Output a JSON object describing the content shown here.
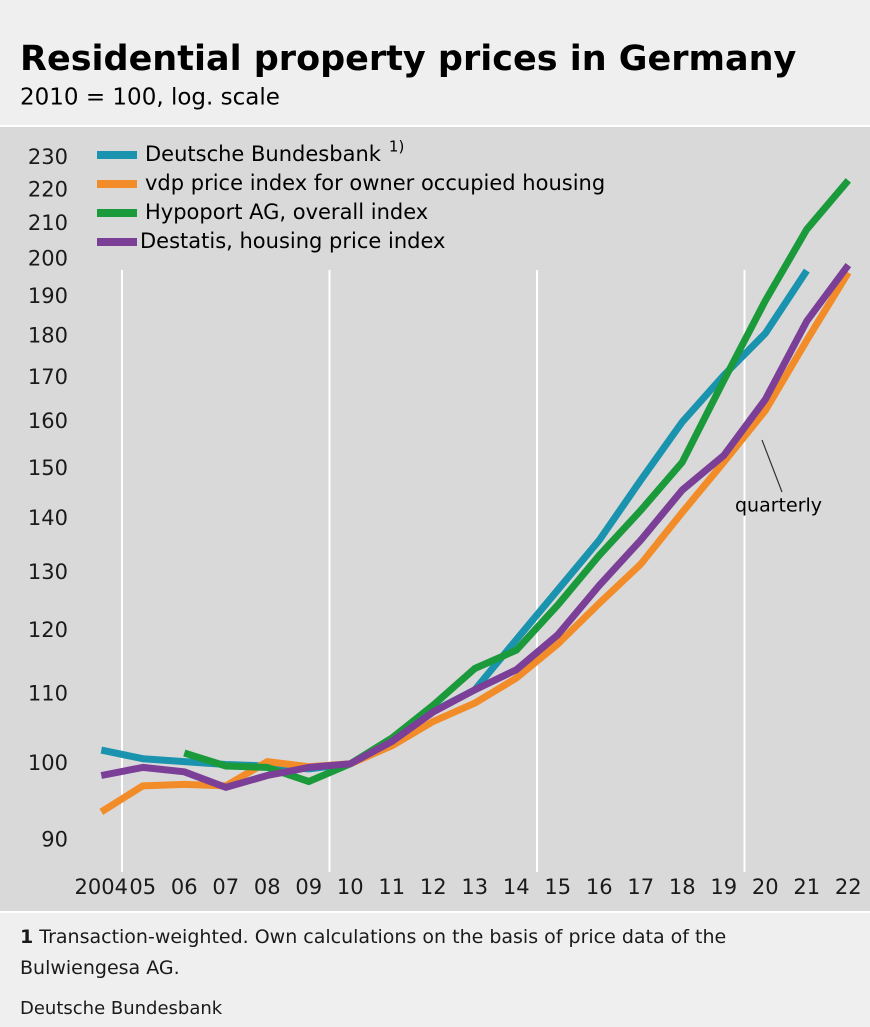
{
  "chart_data": {
    "type": "line",
    "title": "Residential property prices in Germany",
    "subtitle": "2010 = 100, log. scale",
    "log_scale": true,
    "x": [
      2004.5,
      2005.5,
      2006.5,
      2007.5,
      2008.5,
      2009.5,
      2010.5,
      2011.5,
      2012.5,
      2013.5,
      2014.5,
      2015.5,
      2016.5,
      2017.5,
      2018.5,
      2019.5,
      2020.5,
      2021.5,
      2022.5
    ],
    "xlim": [
      2004,
      2023
    ],
    "xticks": [
      {
        "value": 2004.5,
        "label": "2004"
      },
      {
        "value": 2005.5,
        "label": "05"
      },
      {
        "value": 2006.5,
        "label": "06"
      },
      {
        "value": 2007.5,
        "label": "07"
      },
      {
        "value": 2008.5,
        "label": "08"
      },
      {
        "value": 2009.5,
        "label": "09"
      },
      {
        "value": 2010.5,
        "label": "10"
      },
      {
        "value": 2011.5,
        "label": "11"
      },
      {
        "value": 2012.5,
        "label": "12"
      },
      {
        "value": 2013.5,
        "label": "13"
      },
      {
        "value": 2014.5,
        "label": "14"
      },
      {
        "value": 2015.5,
        "label": "15"
      },
      {
        "value": 2016.5,
        "label": "16"
      },
      {
        "value": 2017.5,
        "label": "17"
      },
      {
        "value": 2018.5,
        "label": "18"
      },
      {
        "value": 2019.5,
        "label": "19"
      },
      {
        "value": 2020.5,
        "label": "20"
      },
      {
        "value": 2021.5,
        "label": "21"
      },
      {
        "value": 2022.5,
        "label": "22"
      }
    ],
    "xgrid": [
      2005,
      2010,
      2015,
      2020
    ],
    "ylim": [
      85,
      240
    ],
    "yticks": [
      90,
      100,
      110,
      120,
      130,
      140,
      150,
      160,
      170,
      180,
      190,
      200,
      210,
      220,
      230
    ],
    "series": [
      {
        "name": "Deutsche Bundesbank",
        "legend_note": "1)",
        "color": "#1a93ae",
        "values": [
          101.9,
          100.7,
          100.3,
          99.9,
          99.7,
          99.3,
          100,
          103,
          107.5,
          110.7,
          118.6,
          127,
          136,
          147.7,
          160,
          170.6,
          180.7,
          197,
          null
        ]
      },
      {
        "name": "vdp price index for owner occupied housing",
        "color": "#f28c28",
        "values": [
          93.6,
          97,
          97.2,
          97,
          100.3,
          99.6,
          100,
          102.5,
          106,
          108.7,
          112.5,
          117.9,
          124.7,
          131.6,
          141.3,
          151.4,
          162.5,
          179,
          196.5
        ]
      },
      {
        "name": "Hypoport AG, overall index",
        "color": "#1b9a3c",
        "values": [
          null,
          null,
          101.5,
          99.7,
          99.5,
          97.6,
          100,
          103.6,
          108.4,
          114,
          116.9,
          124.4,
          133.2,
          141.7,
          151.4,
          169.4,
          189,
          208.5,
          223
        ]
      },
      {
        "name": "Destatis, housing price index",
        "color": "#7b3f98",
        "values": [
          98.4,
          99.5,
          98.9,
          96.8,
          98.4,
          99.5,
          100,
          103.1,
          107.4,
          110.7,
          113.8,
          119.4,
          127.8,
          136,
          145.7,
          152.8,
          165,
          183.8,
          198.5
        ]
      }
    ],
    "annotation": "quarterly",
    "footnote": {
      "number": "1",
      "text": "Transaction-weighted. Own calculations on the basis of price data of the Bulwiengesa AG."
    },
    "source": "Deutsche Bundesbank"
  }
}
